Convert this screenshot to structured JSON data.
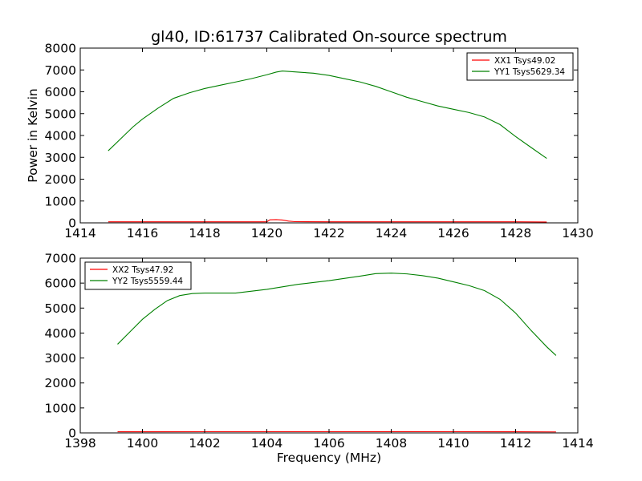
{
  "figure": {
    "title": "gl40, ID:61737 Calibrated On-source spectrum",
    "ylabel": "Power in Kelvin",
    "xlabel": "Frequency (MHz)"
  },
  "chart_data": [
    {
      "type": "line",
      "title": "gl40, ID:61737 Calibrated On-source spectrum",
      "xlabel": "",
      "ylabel": "Power in Kelvin",
      "xlim": [
        1414,
        1430
      ],
      "ylim": [
        0,
        8000
      ],
      "xticks": [
        1414,
        1416,
        1418,
        1420,
        1422,
        1424,
        1426,
        1428,
        1430
      ],
      "yticks": [
        0,
        1000,
        2000,
        3000,
        4000,
        5000,
        6000,
        7000,
        8000
      ],
      "grid": false,
      "legend_position": "top-right",
      "series": [
        {
          "name": "XX1 Tsys49.02",
          "color": "#ff0000",
          "x": [
            1414.9,
            1416,
            1418,
            1420,
            1420.1,
            1420.3,
            1420.5,
            1420.7,
            1420.9,
            1422,
            1424,
            1426,
            1428,
            1429
          ],
          "y": [
            48,
            48,
            49,
            50,
            140,
            150,
            130,
            80,
            55,
            50,
            50,
            49,
            48,
            40
          ]
        },
        {
          "name": "YY1 Tsys5629.34",
          "color": "#008000",
          "x": [
            1414.9,
            1415.3,
            1415.7,
            1416,
            1416.5,
            1417,
            1417.5,
            1418,
            1418.5,
            1419,
            1419.5,
            1420,
            1420.3,
            1420.5,
            1421,
            1421.5,
            1422,
            1422.5,
            1423,
            1423.5,
            1424,
            1424.5,
            1425,
            1425.5,
            1426,
            1426.5,
            1427,
            1427.5,
            1428,
            1428.5,
            1429
          ],
          "y": [
            3300,
            3850,
            4400,
            4750,
            5250,
            5700,
            5950,
            6150,
            6300,
            6450,
            6600,
            6780,
            6900,
            6950,
            6900,
            6850,
            6750,
            6600,
            6450,
            6250,
            6000,
            5750,
            5550,
            5350,
            5200,
            5050,
            4850,
            4500,
            3950,
            3450,
            2950
          ]
        }
      ]
    },
    {
      "type": "line",
      "title": "",
      "xlabel": "Frequency (MHz)",
      "ylabel": "",
      "xlim": [
        1398,
        1414
      ],
      "ylim": [
        0,
        7000
      ],
      "xticks": [
        1398,
        1400,
        1402,
        1404,
        1406,
        1408,
        1410,
        1412,
        1414
      ],
      "yticks": [
        0,
        1000,
        2000,
        3000,
        4000,
        5000,
        6000,
        7000
      ],
      "grid": false,
      "legend_position": "top-left",
      "series": [
        {
          "name": "XX2 Tsys47.92",
          "color": "#ff0000",
          "x": [
            1399.2,
            1400,
            1402,
            1404,
            1406,
            1408,
            1410,
            1412,
            1413.3
          ],
          "y": [
            45,
            47,
            48,
            48,
            48,
            49,
            48,
            47,
            40
          ]
        },
        {
          "name": "YY2 Tsys5559.44",
          "color": "#008000",
          "x": [
            1399.2,
            1399.6,
            1400,
            1400.4,
            1400.8,
            1401.2,
            1401.6,
            1402,
            1403,
            1404,
            1405,
            1406,
            1407,
            1407.5,
            1408,
            1408.5,
            1409,
            1409.5,
            1410,
            1410.5,
            1411,
            1411.5,
            1412,
            1412.5,
            1413,
            1413.3
          ],
          "y": [
            3550,
            4050,
            4550,
            4950,
            5300,
            5500,
            5580,
            5600,
            5600,
            5750,
            5950,
            6100,
            6280,
            6380,
            6400,
            6370,
            6300,
            6200,
            6050,
            5900,
            5700,
            5350,
            4800,
            4100,
            3450,
            3100
          ]
        }
      ]
    }
  ]
}
